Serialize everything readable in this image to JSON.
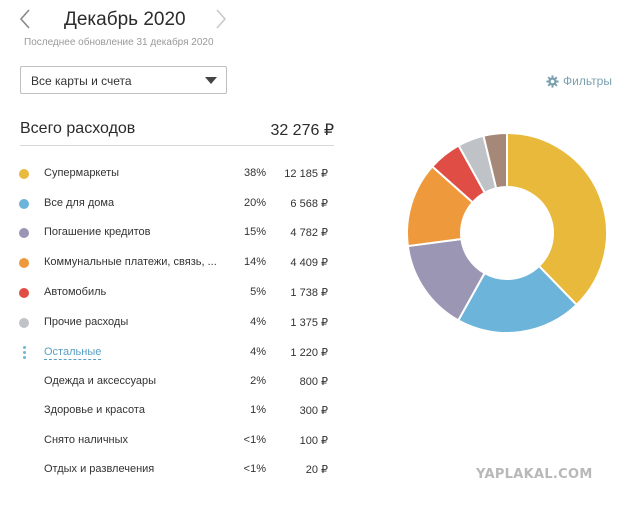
{
  "header": {
    "month_title": "Декабрь 2020",
    "updated": "Последнее обновление 31 декабря 2020"
  },
  "filter_select": {
    "value": "Все карты и счета"
  },
  "filters_link": {
    "label": "Фильтры",
    "icon": "gear-icon"
  },
  "total": {
    "label": "Всего расходов",
    "value": "32 276 ₽"
  },
  "colors": {
    "supermarkets": "#e8b93b",
    "home": "#6cb4da",
    "credit": "#9a96b3",
    "utilities": "#ee9a3c",
    "auto": "#e04d45",
    "other": "#bfc2c6",
    "rest": "#a58877",
    "link": "#5a9fc1"
  },
  "categories": [
    {
      "name": "Супермаркеты",
      "percent": "38%",
      "amount": "12 185 ₽",
      "color": "#e8b93b"
    },
    {
      "name": "Все для дома",
      "percent": "20%",
      "amount": "6 568 ₽",
      "color": "#6cb4da"
    },
    {
      "name": "Погашение кредитов",
      "percent": "15%",
      "amount": "4 782 ₽",
      "color": "#9a96b3"
    },
    {
      "name": "Коммунальные платежи, связь, ...",
      "percent": "14%",
      "amount": "4 409 ₽",
      "color": "#ee9a3c"
    },
    {
      "name": "Автомобиль",
      "percent": "5%",
      "amount": "1 738 ₽",
      "color": "#e04d45"
    },
    {
      "name": "Прочие расходы",
      "percent": "4%",
      "amount": "1 375 ₽",
      "color": "#bfc2c6"
    }
  ],
  "rest": {
    "name": "Остальные",
    "percent": "4%",
    "amount": "1 220 ₽",
    "color": "#a58877"
  },
  "rest_items": [
    {
      "name": "Одежда и аксессуары",
      "percent": "2%",
      "amount": "800 ₽"
    },
    {
      "name": "Здоровье и красота",
      "percent": "1%",
      "amount": "300 ₽"
    },
    {
      "name": "Снято наличных",
      "percent": "<1%",
      "amount": "100 ₽"
    },
    {
      "name": "Отдых и развлечения",
      "percent": "<1%",
      "amount": "20 ₽"
    }
  ],
  "donut_values": [
    12185,
    6568,
    4782,
    4409,
    1738,
    1375,
    1220
  ],
  "watermark": "YAPLAKAL.COM"
}
